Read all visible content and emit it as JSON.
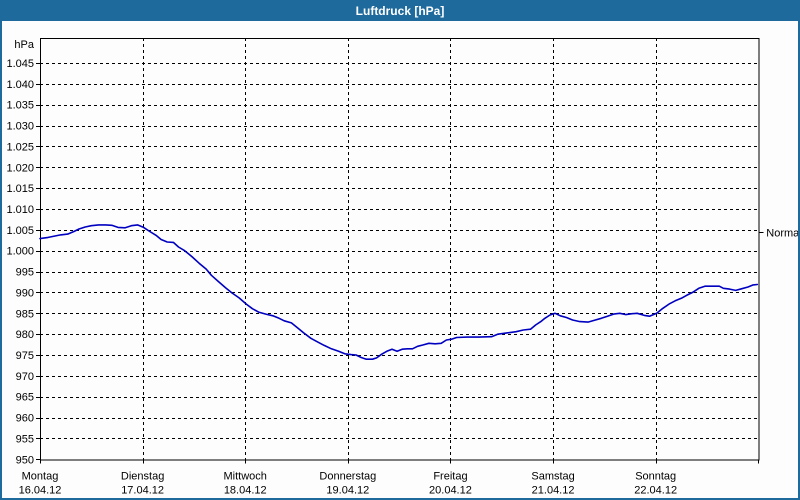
{
  "window": {
    "title": "Luftdruck [hPa]"
  },
  "colors": {
    "titlebar_bg": "#1e6a9d",
    "window_border": "#1e6a9d",
    "titlebar_text": "#ffffff",
    "line": "#0000c0",
    "grid": "#000000",
    "axis_text": "#000000",
    "plot_background": "#fdfdfd"
  },
  "chart_data": {
    "type": "line",
    "title": "Luftdruck [hPa]",
    "unit_label": "hPa",
    "ylim": [
      950,
      1051
    ],
    "y_tick_step": 5,
    "grid_style": "dashed",
    "legend_position": "none",
    "days_shown": 7,
    "y_ticks": [
      {
        "value": 1045,
        "label": "1.045"
      },
      {
        "value": 1040,
        "label": "1.040"
      },
      {
        "value": 1035,
        "label": "1.035"
      },
      {
        "value": 1030,
        "label": "1.030"
      },
      {
        "value": 1025,
        "label": "1.025"
      },
      {
        "value": 1020,
        "label": "1.020"
      },
      {
        "value": 1015,
        "label": "1.015"
      },
      {
        "value": 1010,
        "label": "1.010"
      },
      {
        "value": 1005,
        "label": "1.005"
      },
      {
        "value": 1000,
        "label": "1.000"
      },
      {
        "value": 995,
        "label": "995"
      },
      {
        "value": 990,
        "label": "990"
      },
      {
        "value": 985,
        "label": "985"
      },
      {
        "value": 980,
        "label": "980"
      },
      {
        "value": 975,
        "label": "975"
      },
      {
        "value": 970,
        "label": "970"
      },
      {
        "value": 965,
        "label": "965"
      },
      {
        "value": 960,
        "label": "960"
      },
      {
        "value": 955,
        "label": "955"
      },
      {
        "value": 950,
        "label": "950"
      }
    ],
    "x_ticks": [
      {
        "day": "Montag",
        "date": "16.04.12"
      },
      {
        "day": "Dienstag",
        "date": "17.04.12"
      },
      {
        "day": "Mittwoch",
        "date": "18.04.12"
      },
      {
        "day": "Donnerstag",
        "date": "19.04.12"
      },
      {
        "day": "Freitag",
        "date": "20.04.12"
      },
      {
        "day": "Samstag",
        "date": "21.04.12"
      },
      {
        "day": "Sonntag",
        "date": "22.04.12"
      }
    ],
    "normal_marker": {
      "label": "Normal",
      "value": 1004.5
    },
    "series": [
      {
        "name": "Luftdruck",
        "points": [
          [
            0.0,
            1002.9
          ],
          [
            0.08,
            1003.2
          ],
          [
            0.14,
            1003.5
          ],
          [
            0.2,
            1003.8
          ],
          [
            0.27,
            1004.0
          ],
          [
            0.33,
            1004.6
          ],
          [
            0.38,
            1005.2
          ],
          [
            0.44,
            1005.7
          ],
          [
            0.5,
            1006.0
          ],
          [
            0.57,
            1006.2
          ],
          [
            0.64,
            1006.2
          ],
          [
            0.7,
            1006.1
          ],
          [
            0.76,
            1005.6
          ],
          [
            0.83,
            1005.5
          ],
          [
            0.89,
            1006.0
          ],
          [
            0.95,
            1006.2
          ],
          [
            1.01,
            1005.6
          ],
          [
            1.07,
            1004.6
          ],
          [
            1.13,
            1003.7
          ],
          [
            1.18,
            1002.7
          ],
          [
            1.24,
            1002.1
          ],
          [
            1.3,
            1002.0
          ],
          [
            1.35,
            1000.9
          ],
          [
            1.41,
            1000.0
          ],
          [
            1.48,
            998.6
          ],
          [
            1.55,
            997.0
          ],
          [
            1.62,
            995.6
          ],
          [
            1.67,
            994.1
          ],
          [
            1.74,
            992.6
          ],
          [
            1.81,
            991.1
          ],
          [
            1.87,
            989.9
          ],
          [
            1.94,
            988.7
          ],
          [
            2.01,
            987.2
          ],
          [
            2.07,
            986.1
          ],
          [
            2.13,
            985.3
          ],
          [
            2.2,
            984.8
          ],
          [
            2.27,
            984.4
          ],
          [
            2.33,
            983.8
          ],
          [
            2.38,
            983.2
          ],
          [
            2.45,
            982.7
          ],
          [
            2.51,
            981.5
          ],
          [
            2.57,
            980.3
          ],
          [
            2.64,
            979.0
          ],
          [
            2.7,
            978.2
          ],
          [
            2.77,
            977.3
          ],
          [
            2.84,
            976.5
          ],
          [
            2.91,
            975.9
          ],
          [
            2.97,
            975.3
          ],
          [
            3.03,
            975.1
          ],
          [
            3.08,
            975.0
          ],
          [
            3.13,
            974.4
          ],
          [
            3.18,
            974.0
          ],
          [
            3.24,
            974.0
          ],
          [
            3.28,
            974.3
          ],
          [
            3.33,
            975.2
          ],
          [
            3.38,
            975.9
          ],
          [
            3.43,
            976.4
          ],
          [
            3.48,
            975.9
          ],
          [
            3.53,
            976.4
          ],
          [
            3.58,
            976.5
          ],
          [
            3.63,
            976.5
          ],
          [
            3.68,
            977.1
          ],
          [
            3.73,
            977.4
          ],
          [
            3.79,
            977.8
          ],
          [
            3.85,
            977.7
          ],
          [
            3.91,
            977.8
          ],
          [
            3.96,
            978.6
          ],
          [
            4.01,
            978.8
          ],
          [
            4.06,
            979.2
          ],
          [
            4.16,
            979.3
          ],
          [
            4.28,
            979.3
          ],
          [
            4.4,
            979.4
          ],
          [
            4.46,
            980.0
          ],
          [
            4.55,
            980.3
          ],
          [
            4.64,
            980.6
          ],
          [
            4.71,
            981.0
          ],
          [
            4.78,
            981.2
          ],
          [
            4.83,
            982.2
          ],
          [
            4.88,
            983.0
          ],
          [
            4.92,
            983.8
          ],
          [
            4.97,
            984.6
          ],
          [
            5.02,
            985.0
          ],
          [
            5.07,
            984.4
          ],
          [
            5.13,
            984.0
          ],
          [
            5.19,
            983.4
          ],
          [
            5.26,
            983.0
          ],
          [
            5.34,
            982.9
          ],
          [
            5.4,
            983.3
          ],
          [
            5.47,
            983.8
          ],
          [
            5.53,
            984.3
          ],
          [
            5.59,
            984.8
          ],
          [
            5.65,
            985.0
          ],
          [
            5.71,
            984.7
          ],
          [
            5.77,
            984.9
          ],
          [
            5.82,
            985.0
          ],
          [
            5.89,
            984.5
          ],
          [
            5.94,
            984.3
          ],
          [
            6.01,
            985.0
          ],
          [
            6.07,
            986.2
          ],
          [
            6.13,
            987.2
          ],
          [
            6.19,
            988.0
          ],
          [
            6.25,
            988.6
          ],
          [
            6.3,
            989.3
          ],
          [
            6.36,
            990.0
          ],
          [
            6.42,
            991.0
          ],
          [
            6.48,
            991.5
          ],
          [
            6.55,
            991.5
          ],
          [
            6.62,
            991.5
          ],
          [
            6.66,
            991.0
          ],
          [
            6.72,
            990.8
          ],
          [
            6.78,
            990.5
          ],
          [
            6.84,
            990.9
          ],
          [
            6.9,
            991.3
          ],
          [
            6.95,
            991.8
          ],
          [
            6.99,
            991.9
          ]
        ]
      }
    ]
  }
}
